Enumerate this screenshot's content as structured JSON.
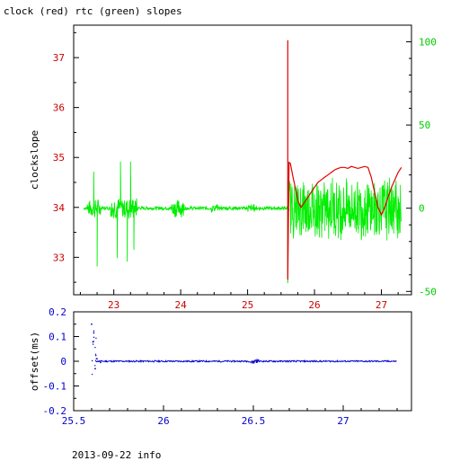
{
  "title": "clock (red) rtc (green) slopes",
  "footer": "2013-09-22 info",
  "colors": {
    "clock": "#e00000",
    "rtc": "#00ee00",
    "offset": "#0000cc",
    "axis": "#000000",
    "left_ticks": "#cc0000",
    "right_ticks": "#00cc00",
    "bottom_ticks": "#cc0000",
    "blue_ticks": "#0000cc"
  },
  "chart_data": [
    {
      "type": "line",
      "title": "clock (red) rtc (green) slopes",
      "ylabel": "clockslope",
      "xlim": [
        22.4,
        27.45
      ],
      "ylim": [
        32.25,
        37.65
      ],
      "y2lim": [
        -52,
        110
      ],
      "xticks": [
        "23",
        "24",
        "25",
        "26",
        "27"
      ],
      "yticks": [
        "33",
        "34",
        "35",
        "36",
        "37"
      ],
      "y2ticks": [
        "-50",
        "0",
        "50",
        "100"
      ],
      "series": [
        {
          "name": "clock",
          "axis": "left",
          "x": [
            25.6,
            25.6,
            25.62,
            25.62,
            25.64,
            25.68,
            25.72,
            25.76,
            25.8,
            25.85,
            25.9,
            25.95,
            26.0,
            26.05,
            26.1,
            26.15,
            26.2,
            26.25,
            26.3,
            26.35,
            26.4,
            26.45,
            26.5,
            26.55,
            26.6,
            26.65,
            26.7,
            26.75,
            26.8,
            26.85,
            26.9,
            26.95,
            27.0,
            27.05,
            27.1,
            27.15,
            27.2,
            27.25,
            27.3
          ],
          "values": [
            37.35,
            32.55,
            34.85,
            34.9,
            34.88,
            34.6,
            34.35,
            34.1,
            34.0,
            34.1,
            34.2,
            34.3,
            34.4,
            34.5,
            34.55,
            34.6,
            34.65,
            34.7,
            34.75,
            34.78,
            34.8,
            34.8,
            34.78,
            34.82,
            34.8,
            34.78,
            34.8,
            34.82,
            34.8,
            34.6,
            34.3,
            34.0,
            33.85,
            34.0,
            34.2,
            34.4,
            34.55,
            34.7,
            34.8
          ]
        },
        {
          "name": "rtc",
          "axis": "right",
          "note_spikes": "spiky noise around 0 with isolated spikes",
          "x": [
            22.55,
            22.7,
            22.75,
            23.0,
            23.05,
            23.1,
            23.2,
            23.25,
            23.3,
            23.5,
            23.95,
            24.0,
            24.5,
            25.0,
            25.55,
            25.6,
            25.65,
            25.7,
            27.3
          ],
          "values": [
            0,
            22,
            -35,
            0,
            -30,
            28,
            -32,
            28,
            -25,
            0,
            0,
            0,
            0,
            0,
            0,
            -45,
            0,
            0,
            0
          ],
          "envelope_from": 25.62,
          "envelope_to": 27.3,
          "envelope_amp": 20
        }
      ]
    },
    {
      "type": "line",
      "ylabel": "offset(ms)",
      "xlim": [
        25.5,
        27.38
      ],
      "ylim": [
        -0.2,
        0.2
      ],
      "xticks": [
        "25.5",
        "26",
        "26.5",
        "27"
      ],
      "yticks": [
        "-0.2",
        "-0.1",
        "0",
        "0.1",
        "0.2"
      ],
      "series": [
        {
          "x": [
            25.6,
            25.61,
            25.62,
            25.63,
            25.65,
            25.7,
            26.0,
            26.4,
            26.5,
            26.52,
            26.6,
            27.0,
            27.3
          ],
          "values": [
            0.15,
            0.08,
            -0.03,
            0.01,
            -0.005,
            0.0,
            0.0,
            0.002,
            0.01,
            0.0,
            -0.002,
            0.0,
            0.0
          ]
        }
      ]
    }
  ]
}
